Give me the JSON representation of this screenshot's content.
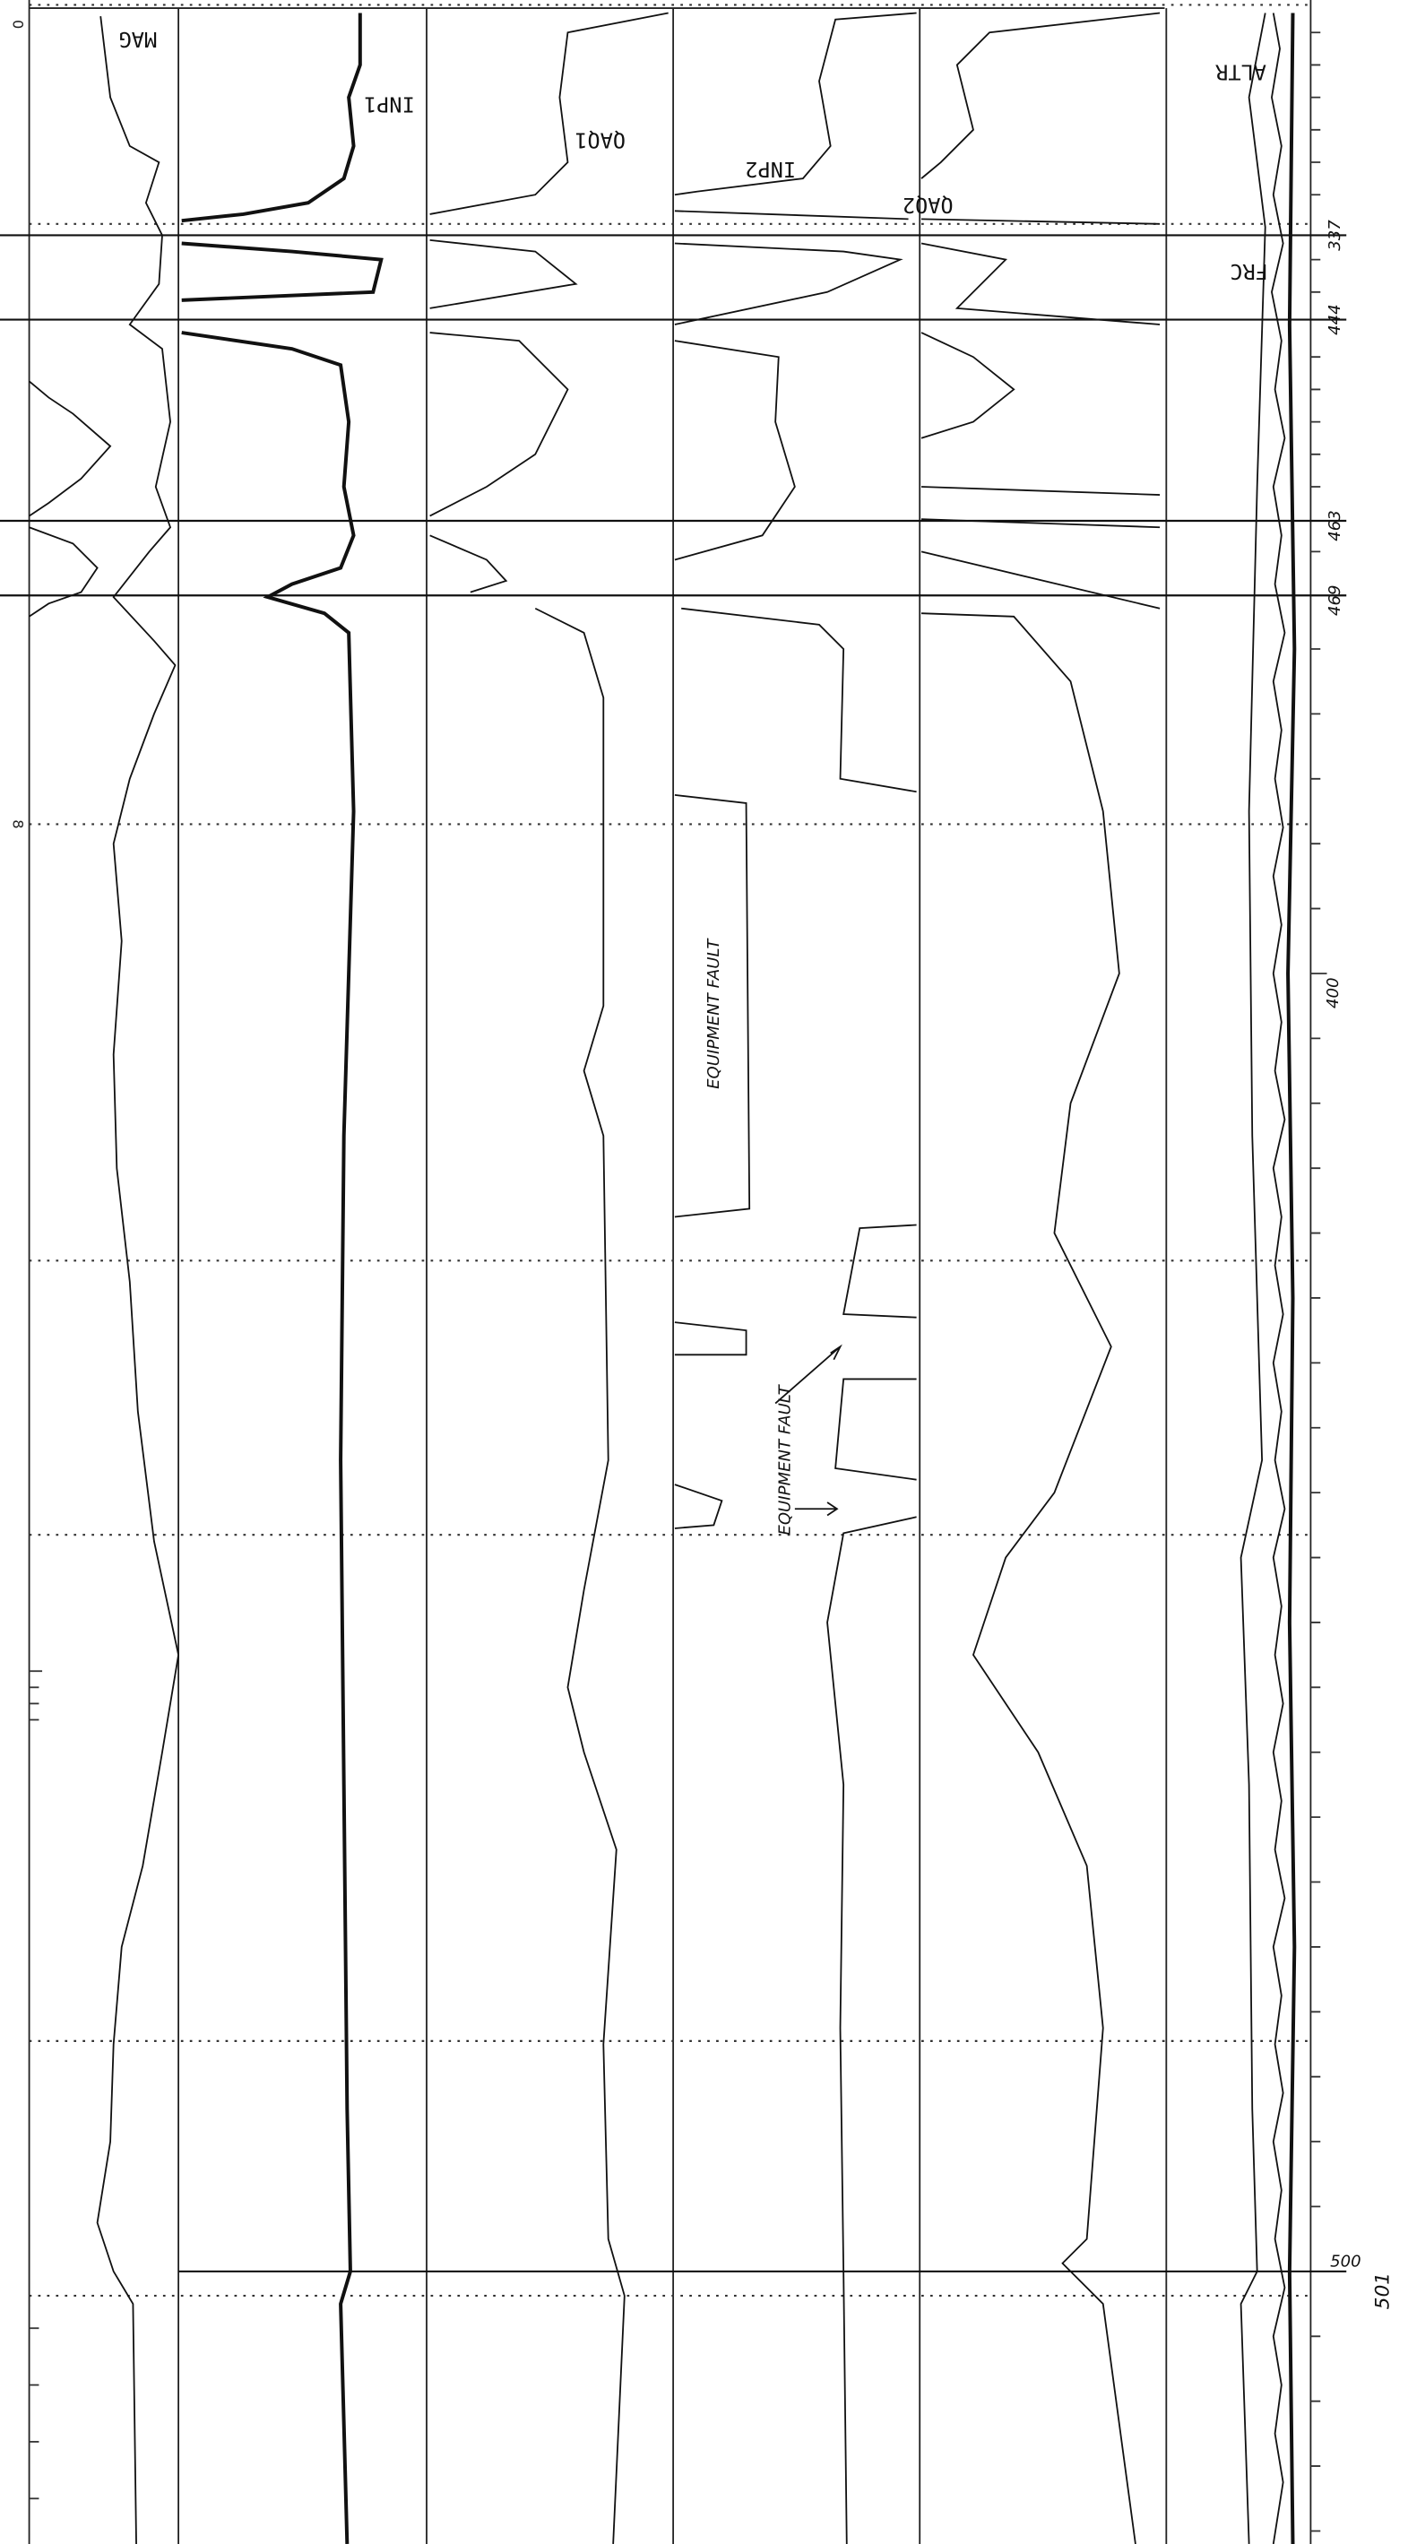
{
  "channels": [
    "MAG",
    "INP1",
    "QAQ1",
    "INP2",
    "QAQ2",
    "ALTR",
    "FRC"
  ],
  "fiducials": [
    "337",
    "444",
    "463",
    "469",
    "500"
  ],
  "scale_marks": [
    "400",
    "501"
  ],
  "depth_marks": [
    "0",
    "8"
  ],
  "annotations": [
    "EQUIPMENT FAULT",
    "EQUIPMENT FAULT"
  ]
}
